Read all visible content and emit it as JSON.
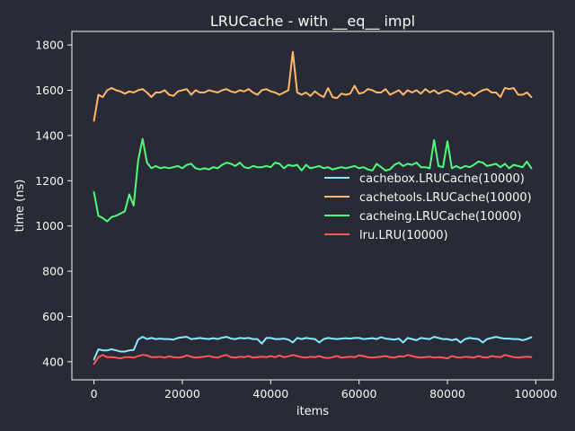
{
  "chart_data": {
    "type": "line",
    "title": "LRUCache - with __eq__ impl",
    "xlabel": "items",
    "ylabel": "time (ns)",
    "xlim": [
      -5000,
      104000
    ],
    "ylim": [
      320,
      1860
    ],
    "xticks": [
      0,
      20000,
      40000,
      60000,
      80000,
      100000
    ],
    "yticks": [
      400,
      600,
      800,
      1000,
      1200,
      1400,
      1600,
      1800
    ],
    "grid": false,
    "legend_position": "center-right",
    "x": [
      0,
      1000,
      2000,
      3000,
      4000,
      5000,
      6000,
      7000,
      8000,
      9000,
      10000,
      11000,
      12000,
      13000,
      14000,
      15000,
      16000,
      17000,
      18000,
      19000,
      20000,
      21000,
      22000,
      23000,
      24000,
      25000,
      26000,
      27000,
      28000,
      29000,
      30000,
      31000,
      32000,
      33000,
      34000,
      35000,
      36000,
      37000,
      38000,
      39000,
      40000,
      41000,
      42000,
      43000,
      44000,
      45000,
      46000,
      47000,
      48000,
      49000,
      50000,
      51000,
      52000,
      53000,
      54000,
      55000,
      56000,
      57000,
      58000,
      59000,
      60000,
      61000,
      62000,
      63000,
      64000,
      65000,
      66000,
      67000,
      68000,
      69000,
      70000,
      71000,
      72000,
      73000,
      74000,
      75000,
      76000,
      77000,
      78000,
      79000,
      80000,
      81000,
      82000,
      83000,
      84000,
      85000,
      86000,
      87000,
      88000,
      89000,
      90000,
      91000,
      92000,
      93000,
      94000,
      95000,
      96000,
      97000,
      98000,
      99000
    ],
    "series": [
      {
        "name": "cachebox.LRUCache(10000)",
        "color": "#8be9fd",
        "values": [
          410,
          455,
          450,
          450,
          455,
          450,
          445,
          445,
          450,
          452,
          498,
          510,
          500,
          505,
          500,
          502,
          500,
          500,
          498,
          505,
          508,
          510,
          500,
          502,
          505,
          502,
          500,
          504,
          500,
          506,
          510,
          502,
          500,
          505,
          503,
          505,
          500,
          500,
          480,
          505,
          505,
          500,
          500,
          502,
          498,
          485,
          505,
          500,
          505,
          502,
          500,
          485,
          500,
          505,
          502,
          500,
          502,
          504,
          502,
          505,
          505,
          500,
          502,
          504,
          500,
          508,
          502,
          500,
          498,
          502,
          485,
          505,
          500,
          495,
          505,
          502,
          500,
          510,
          505,
          500,
          500,
          495,
          500,
          485,
          500,
          505,
          502,
          500,
          485,
          500,
          505,
          510,
          505,
          502,
          502,
          500,
          500,
          495,
          500,
          508
        ]
      },
      {
        "name": "cachetools.LRUCache(10000)",
        "color": "#ffb86c",
        "values": [
          1465,
          1580,
          1570,
          1600,
          1610,
          1600,
          1595,
          1585,
          1595,
          1590,
          1600,
          1605,
          1590,
          1570,
          1590,
          1590,
          1600,
          1580,
          1575,
          1595,
          1600,
          1605,
          1580,
          1600,
          1590,
          1590,
          1600,
          1595,
          1590,
          1600,
          1605,
          1595,
          1590,
          1600,
          1595,
          1605,
          1590,
          1580,
          1600,
          1605,
          1595,
          1590,
          1580,
          1590,
          1600,
          1770,
          1590,
          1580,
          1590,
          1575,
          1595,
          1580,
          1570,
          1610,
          1570,
          1565,
          1585,
          1580,
          1585,
          1620,
          1585,
          1590,
          1605,
          1600,
          1590,
          1590,
          1605,
          1580,
          1590,
          1600,
          1580,
          1600,
          1590,
          1600,
          1585,
          1605,
          1590,
          1600,
          1585,
          1595,
          1600,
          1590,
          1580,
          1595,
          1580,
          1590,
          1575,
          1590,
          1600,
          1605,
          1590,
          1590,
          1570,
          1610,
          1605,
          1610,
          1580,
          1580,
          1590,
          1570
        ]
      },
      {
        "name": "cacheing.LRUCache(10000)",
        "color": "#50fa7b",
        "values": [
          1150,
          1045,
          1035,
          1020,
          1040,
          1045,
          1055,
          1065,
          1140,
          1090,
          1290,
          1385,
          1280,
          1255,
          1265,
          1255,
          1260,
          1255,
          1260,
          1265,
          1255,
          1270,
          1275,
          1255,
          1250,
          1255,
          1250,
          1260,
          1255,
          1270,
          1280,
          1275,
          1265,
          1280,
          1260,
          1255,
          1265,
          1260,
          1260,
          1265,
          1260,
          1280,
          1275,
          1255,
          1270,
          1265,
          1270,
          1245,
          1270,
          1255,
          1260,
          1265,
          1255,
          1260,
          1250,
          1255,
          1260,
          1255,
          1260,
          1265,
          1255,
          1260,
          1250,
          1245,
          1275,
          1260,
          1245,
          1250,
          1270,
          1280,
          1265,
          1275,
          1270,
          1280,
          1260,
          1260,
          1255,
          1380,
          1265,
          1260,
          1375,
          1255,
          1265,
          1255,
          1265,
          1260,
          1270,
          1285,
          1280,
          1265,
          1270,
          1275,
          1260,
          1275,
          1255,
          1270,
          1265,
          1260,
          1285,
          1255
        ]
      },
      {
        "name": "lru.LRU(10000)",
        "color": "#ff5555",
        "values": [
          390,
          420,
          430,
          420,
          420,
          418,
          415,
          420,
          420,
          418,
          425,
          430,
          428,
          420,
          420,
          422,
          418,
          424,
          420,
          418,
          420,
          428,
          422,
          418,
          420,
          422,
          426,
          420,
          418,
          425,
          430,
          420,
          418,
          422,
          420,
          425,
          418,
          420,
          422,
          420,
          425,
          420,
          428,
          420,
          424,
          430,
          425,
          420,
          418,
          422,
          420,
          425,
          418,
          416,
          420,
          425,
          418,
          420,
          422,
          420,
          428,
          425,
          420,
          418,
          420,
          422,
          425,
          420,
          418,
          424,
          422,
          430,
          425,
          420,
          418,
          420,
          422,
          418,
          420,
          418,
          415,
          425,
          420,
          418,
          422,
          420,
          418,
          425,
          420,
          418,
          425,
          422,
          420,
          430,
          425,
          420,
          418,
          420,
          422,
          420
        ]
      }
    ]
  }
}
